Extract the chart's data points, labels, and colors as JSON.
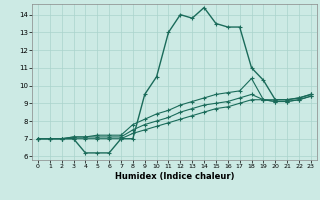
{
  "xlabel": "Humidex (Indice chaleur)",
  "bg_color": "#cceae4",
  "grid_color": "#aad4cc",
  "line_color": "#1a6b5a",
  "xlim": [
    -0.5,
    23.5
  ],
  "ylim": [
    5.8,
    14.6
  ],
  "yticks": [
    6,
    7,
    8,
    9,
    10,
    11,
    12,
    13,
    14
  ],
  "xticks": [
    0,
    1,
    2,
    3,
    4,
    5,
    6,
    7,
    8,
    9,
    10,
    11,
    12,
    13,
    14,
    15,
    16,
    17,
    18,
    19,
    20,
    21,
    22,
    23
  ],
  "series": [
    [
      7.0,
      7.0,
      7.0,
      7.0,
      6.2,
      6.2,
      6.2,
      7.0,
      7.0,
      9.5,
      10.5,
      13.0,
      14.0,
      13.8,
      14.4,
      13.5,
      13.3,
      13.3,
      11.0,
      10.3,
      9.2,
      9.2,
      9.3,
      9.5
    ],
    [
      7.0,
      7.0,
      7.0,
      7.1,
      7.1,
      7.2,
      7.2,
      7.2,
      7.8,
      8.1,
      8.4,
      8.6,
      8.9,
      9.1,
      9.3,
      9.5,
      9.6,
      9.7,
      10.4,
      9.2,
      9.2,
      9.2,
      9.3,
      9.5
    ],
    [
      7.0,
      7.0,
      7.0,
      7.1,
      7.1,
      7.1,
      7.1,
      7.1,
      7.5,
      7.8,
      8.0,
      8.2,
      8.5,
      8.7,
      8.9,
      9.0,
      9.1,
      9.3,
      9.5,
      9.2,
      9.1,
      9.1,
      9.2,
      9.4
    ],
    [
      7.0,
      7.0,
      7.0,
      7.0,
      7.0,
      7.0,
      7.0,
      7.0,
      7.3,
      7.5,
      7.7,
      7.9,
      8.1,
      8.3,
      8.5,
      8.7,
      8.8,
      9.0,
      9.2,
      9.2,
      9.1,
      9.1,
      9.2,
      9.4
    ]
  ],
  "linewidths": [
    1.0,
    0.8,
    0.8,
    0.8
  ]
}
